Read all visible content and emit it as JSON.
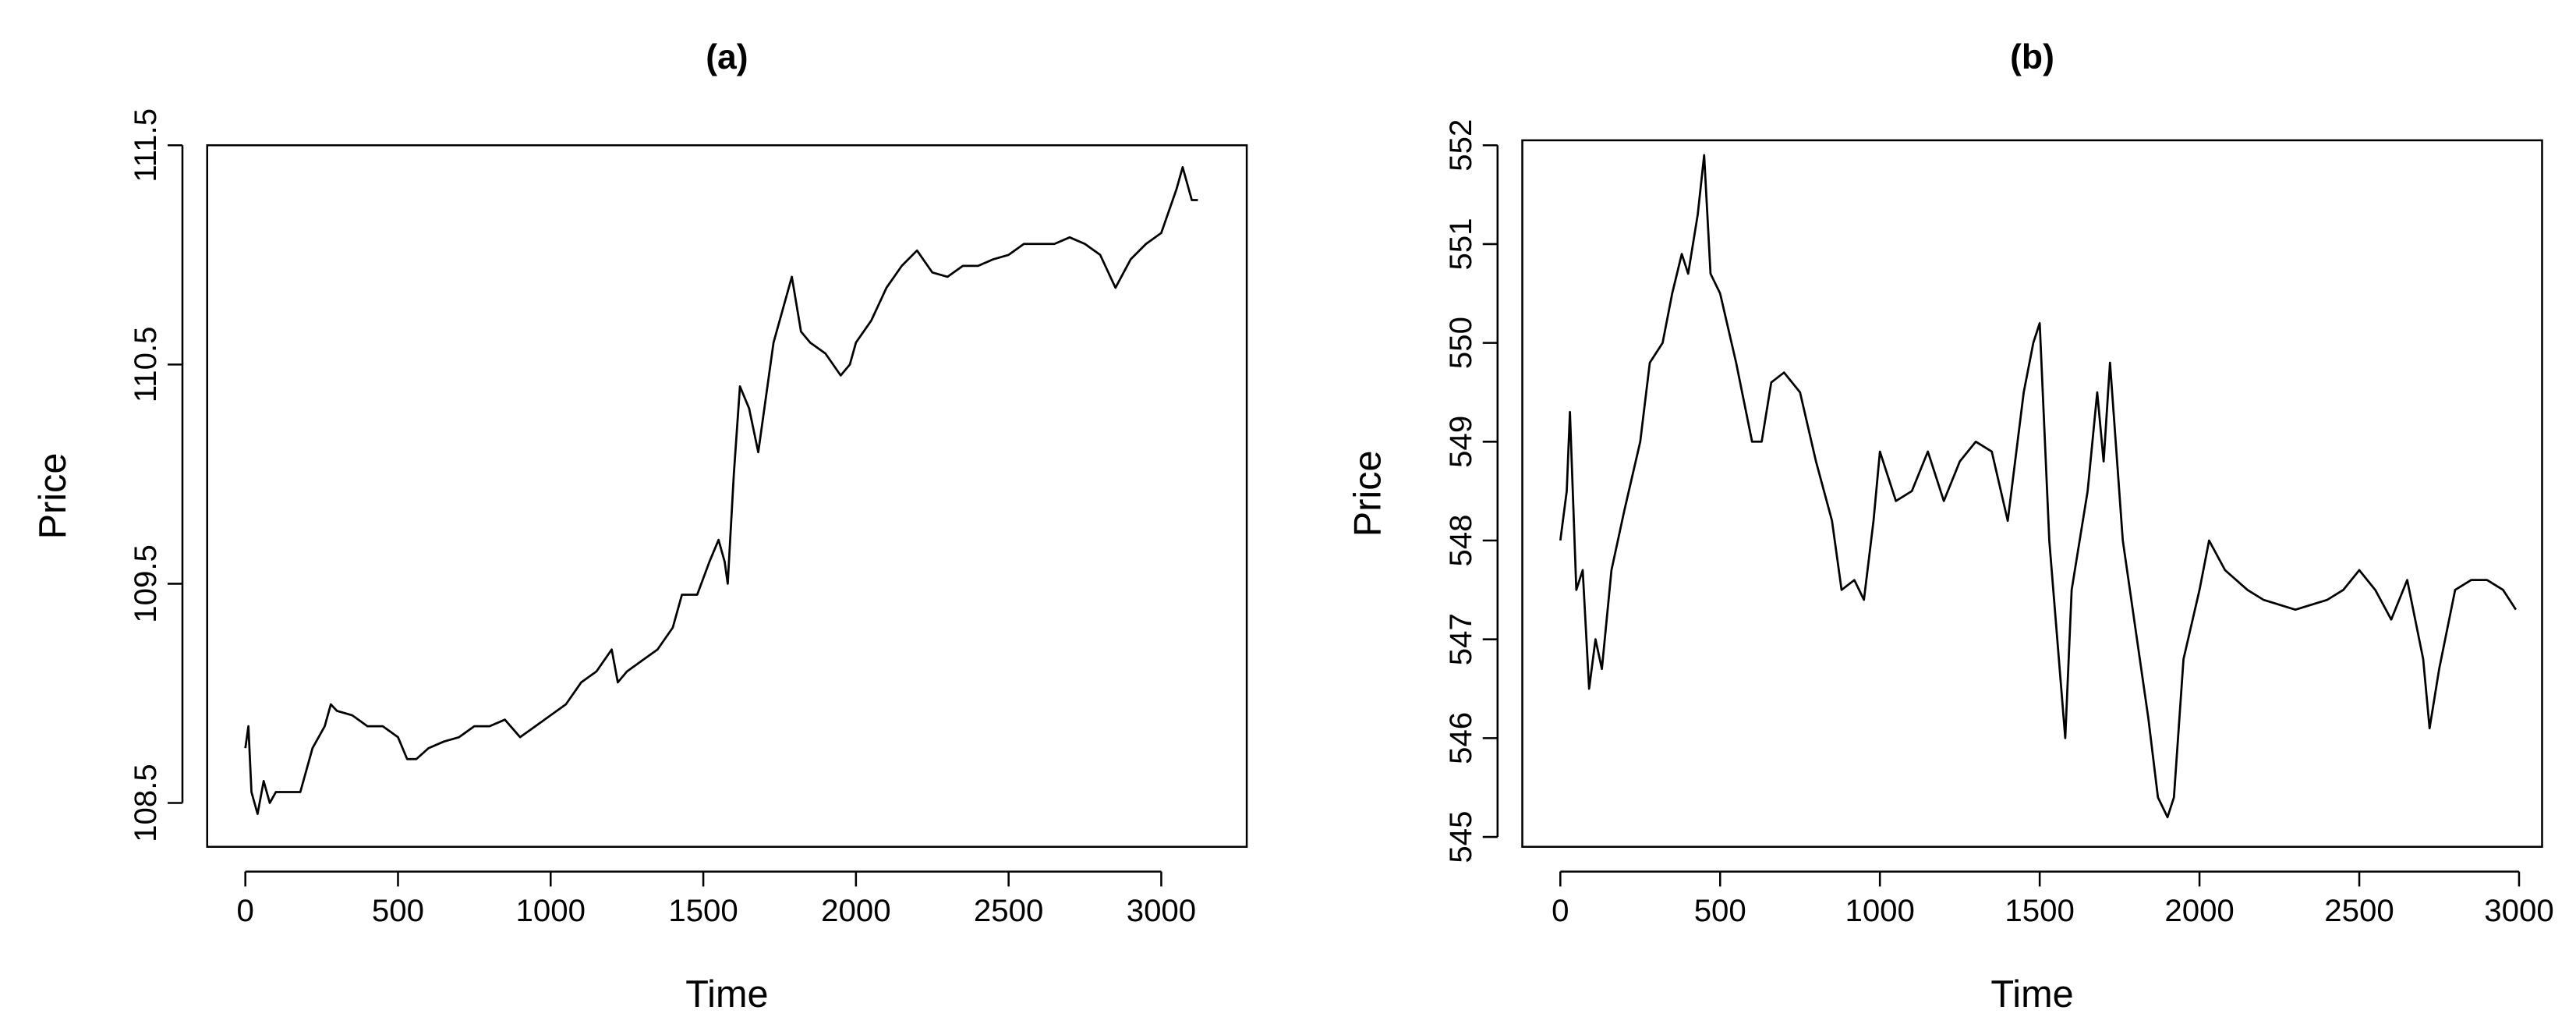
{
  "chart_data": [
    {
      "type": "line",
      "title": "(a)",
      "x_label": "Time",
      "y_label": "Price",
      "color": "#000000",
      "xlim": [
        -125,
        3280
      ],
      "ylim": [
        108.3,
        111.5
      ],
      "xticks": [
        0,
        500,
        1000,
        1500,
        2000,
        2500,
        3000
      ],
      "yticks": [
        108.5,
        109.5,
        110.5,
        111.5
      ],
      "x": [
        0,
        10,
        20,
        40,
        60,
        80,
        100,
        150,
        180,
        220,
        260,
        280,
        300,
        350,
        400,
        450,
        500,
        530,
        560,
        600,
        650,
        700,
        750,
        800,
        850,
        900,
        950,
        1000,
        1050,
        1100,
        1150,
        1200,
        1220,
        1250,
        1300,
        1350,
        1400,
        1430,
        1480,
        1520,
        1550,
        1570,
        1580,
        1600,
        1620,
        1650,
        1680,
        1700,
        1730,
        1770,
        1790,
        1820,
        1850,
        1900,
        1950,
        1980,
        2000,
        2050,
        2100,
        2150,
        2200,
        2250,
        2300,
        2350,
        2400,
        2450,
        2500,
        2550,
        2600,
        2650,
        2700,
        2750,
        2800,
        2850,
        2900,
        2950,
        3000,
        3050,
        3070,
        3100,
        3120
      ],
      "values": [
        108.75,
        108.85,
        108.55,
        108.45,
        108.6,
        108.5,
        108.55,
        108.55,
        108.55,
        108.75,
        108.85,
        108.95,
        108.92,
        108.9,
        108.85,
        108.85,
        108.8,
        108.7,
        108.7,
        108.75,
        108.78,
        108.8,
        108.85,
        108.85,
        108.88,
        108.8,
        108.85,
        108.9,
        108.95,
        109.05,
        109.1,
        109.2,
        109.05,
        109.1,
        109.15,
        109.2,
        109.3,
        109.45,
        109.45,
        109.6,
        109.7,
        109.6,
        109.5,
        110.0,
        110.4,
        110.3,
        110.1,
        110.3,
        110.6,
        110.8,
        110.9,
        110.65,
        110.6,
        110.55,
        110.45,
        110.5,
        110.6,
        110.7,
        110.85,
        110.95,
        111.02,
        110.92,
        110.9,
        110.95,
        110.95,
        110.98,
        111.0,
        111.05,
        111.05,
        111.05,
        111.08,
        111.05,
        111.0,
        110.85,
        110.98,
        111.05,
        111.1,
        111.3,
        111.4,
        111.25,
        111.25
      ]
    },
    {
      "type": "line",
      "title": "(b)",
      "x_label": "Time",
      "y_label": "Price",
      "color": "#000000",
      "xlim": [
        -119,
        3072
      ],
      "ylim": [
        544.9,
        552.05
      ],
      "xticks": [
        0,
        500,
        1000,
        1500,
        2000,
        2500,
        3000
      ],
      "yticks": [
        545,
        546,
        547,
        548,
        549,
        550,
        551,
        552
      ],
      "x": [
        0,
        20,
        30,
        50,
        70,
        90,
        110,
        130,
        160,
        200,
        250,
        280,
        320,
        350,
        380,
        400,
        430,
        450,
        470,
        500,
        550,
        600,
        630,
        660,
        700,
        750,
        800,
        850,
        880,
        920,
        950,
        980,
        1000,
        1050,
        1100,
        1150,
        1200,
        1250,
        1300,
        1350,
        1400,
        1450,
        1480,
        1500,
        1530,
        1560,
        1580,
        1600,
        1650,
        1680,
        1700,
        1720,
        1760,
        1800,
        1840,
        1870,
        1900,
        1920,
        1950,
        2000,
        2030,
        2080,
        2150,
        2200,
        2300,
        2400,
        2450,
        2500,
        2550,
        2600,
        2650,
        2700,
        2720,
        2750,
        2800,
        2850,
        2900,
        2950,
        2990
      ],
      "values": [
        548.0,
        548.5,
        549.3,
        547.5,
        547.7,
        546.5,
        547.0,
        546.7,
        547.7,
        548.3,
        549.0,
        549.8,
        550.0,
        550.5,
        550.9,
        550.7,
        551.3,
        551.9,
        550.7,
        550.5,
        549.8,
        549.0,
        549.0,
        549.6,
        549.7,
        549.5,
        548.8,
        548.2,
        547.5,
        547.6,
        547.4,
        548.2,
        548.9,
        548.4,
        548.5,
        548.9,
        548.4,
        548.8,
        549.0,
        548.9,
        548.2,
        549.5,
        550.0,
        550.2,
        548.0,
        546.8,
        546.0,
        547.5,
        548.5,
        549.5,
        548.8,
        549.8,
        548.0,
        547.1,
        546.2,
        545.4,
        545.2,
        545.4,
        546.8,
        547.5,
        548.0,
        547.7,
        547.5,
        547.4,
        547.3,
        547.4,
        547.5,
        547.7,
        547.5,
        547.2,
        547.6,
        546.8,
        546.1,
        546.7,
        547.5,
        547.6,
        547.6,
        547.5,
        547.3
      ]
    }
  ]
}
